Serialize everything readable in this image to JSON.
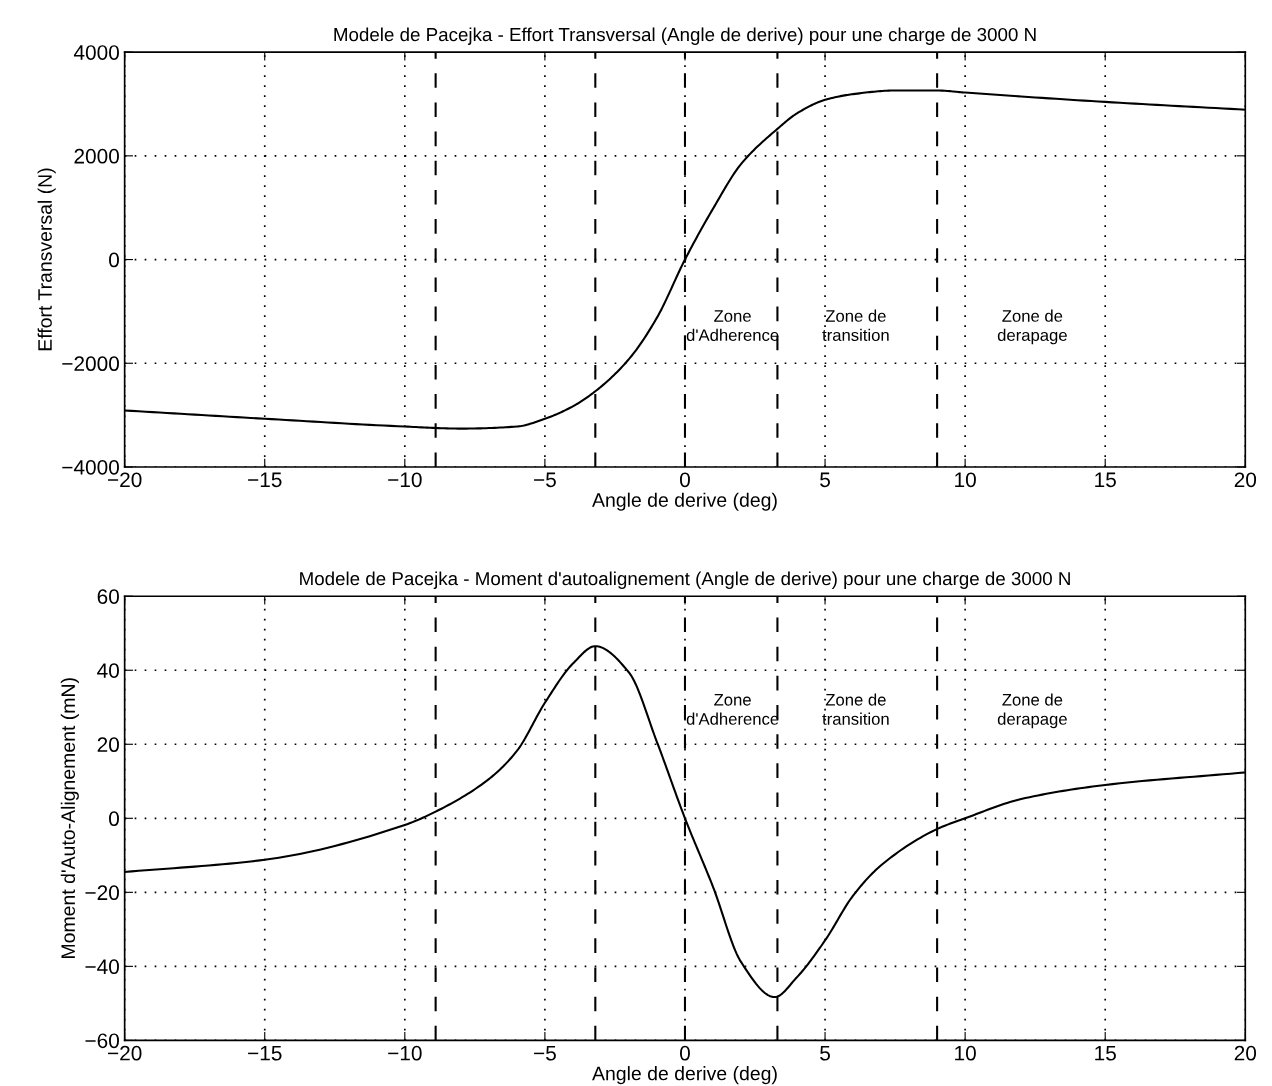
{
  "chart_data": [
    {
      "type": "line",
      "title": "Modele de Pacejka - Effort Transversal (Angle de derive) pour une charge de 3000 N",
      "xlabel": "Angle de derive (deg)",
      "ylabel": "Effort Transversal (N)",
      "series": [
        {
          "color": "#000000",
          "x": [
            -20,
            -15,
            -10,
            -8,
            -6,
            -5,
            -4,
            -3.2,
            -2,
            -1,
            0,
            1,
            2,
            3.3,
            4,
            5,
            6,
            7.5,
            9,
            10,
            15,
            20
          ],
          "values": [
            -2910,
            -3070,
            -3220,
            -3260,
            -3220,
            -3070,
            -2830,
            -2540,
            -1920,
            -1120,
            0,
            980,
            1840,
            2520,
            2820,
            3080,
            3190,
            3260,
            3260,
            3220,
            3040,
            2890
          ]
        }
      ],
      "xlim": [
        -20,
        20
      ],
      "xticks": [
        -20,
        -15,
        -10,
        -5,
        0,
        5,
        10,
        15,
        20
      ],
      "ylim": [
        -4000,
        4000
      ],
      "yticks": [
        -4000,
        -2000,
        0,
        2000,
        4000
      ],
      "grid": true,
      "line_style": "solid",
      "marker": "none",
      "ref_lines": [
        {
          "axis": "x",
          "value": -8.9,
          "color": "#000000",
          "line_style": "dashed"
        },
        {
          "axis": "x",
          "value": -3.2,
          "color": "#000000",
          "line_style": "dashed"
        },
        {
          "axis": "x",
          "value": 0,
          "color": "#000000",
          "line_style": "dashed"
        },
        {
          "axis": "x",
          "value": 3.3,
          "color": "#000000",
          "line_style": "dashed"
        },
        {
          "axis": "x",
          "value": 9.0,
          "color": "#000000",
          "line_style": "dashed"
        }
      ],
      "annotations": [
        "Zone\nd'Adherence",
        "Zone de\ntransition",
        "Zone de\nderapage"
      ]
    },
    {
      "type": "line",
      "title": "Modele de Pacejka - Moment d'autoalignement (Angle de derive) pour une charge de 3000 N",
      "xlabel": "Angle de derive (deg)",
      "ylabel": "Moment d'Auto-Alignement (mN)",
      "series": [
        {
          "color": "#000000",
          "x": [
            -20,
            -15,
            -10,
            -8.9,
            -7,
            -6,
            -5,
            -4,
            -3.2,
            -2,
            -1,
            0,
            1,
            2,
            3.2,
            4,
            5,
            6,
            7,
            9,
            10,
            12,
            15,
            20
          ],
          "values": [
            -14.5,
            -11.2,
            -1.8,
            1.8,
            10.6,
            18.2,
            31.2,
            41.8,
            46.5,
            39.4,
            20.6,
            0,
            -18.5,
            -38.8,
            -48.3,
            -42.9,
            -33,
            -20.9,
            -12.7,
            -2.9,
            0,
            5.2,
            9.0,
            12.4
          ]
        }
      ],
      "xlim": [
        -20,
        20
      ],
      "xticks": [
        -20,
        -15,
        -10,
        -5,
        0,
        5,
        10,
        15,
        20
      ],
      "ylim": [
        -60,
        60
      ],
      "yticks": [
        -60,
        -40,
        -20,
        0,
        20,
        40,
        60
      ],
      "grid": true,
      "line_style": "solid",
      "marker": "none",
      "ref_lines": [
        {
          "axis": "x",
          "value": -8.9,
          "color": "#000000",
          "line_style": "dashed"
        },
        {
          "axis": "x",
          "value": -3.2,
          "color": "#000000",
          "line_style": "dashed"
        },
        {
          "axis": "x",
          "value": 0,
          "color": "#000000",
          "line_style": "dashed"
        },
        {
          "axis": "x",
          "value": 3.3,
          "color": "#000000",
          "line_style": "dashed"
        },
        {
          "axis": "x",
          "value": 9.0,
          "color": "#000000",
          "line_style": "dashed"
        }
      ],
      "annotations": [
        "Zone\nd'Adherence",
        "Zone de\ntransition",
        "Zone de\nderapage"
      ]
    }
  ]
}
